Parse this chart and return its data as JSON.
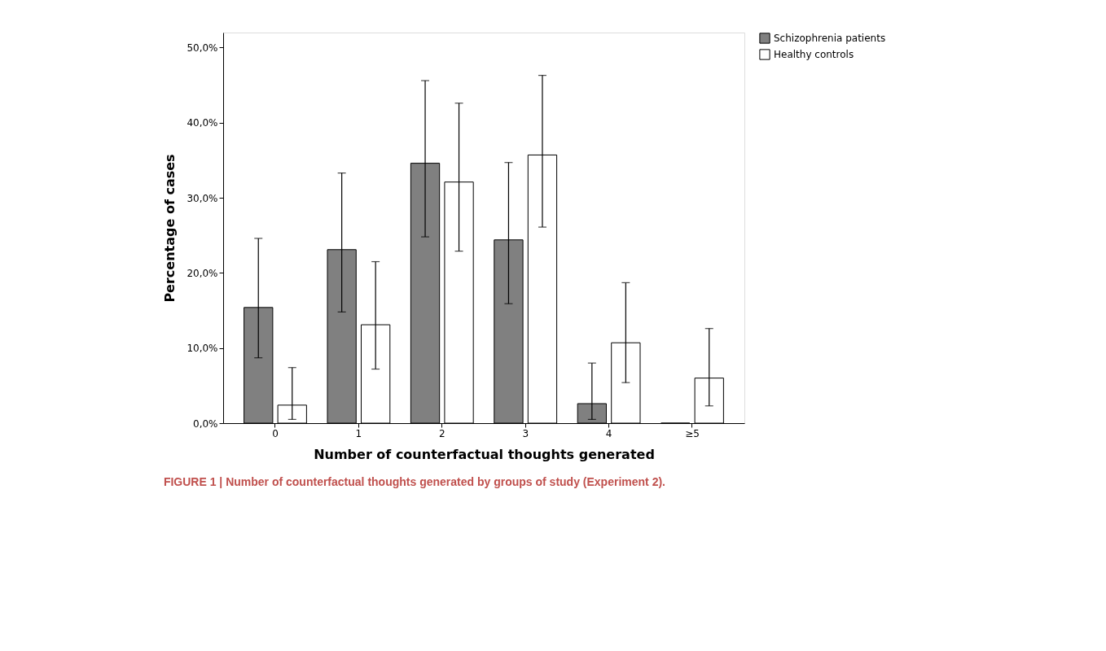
{
  "chart_data": {
    "type": "bar",
    "categories": [
      "0",
      "1",
      "2",
      "3",
      "4",
      "≥5"
    ],
    "xlabel": "Number of counterfactual thoughts generated",
    "ylabel": "Percentage of cases",
    "series": [
      {
        "name": "Schizophrenia patients",
        "color": "#808080",
        "values": [
          15.4,
          23.1,
          34.6,
          24.4,
          2.6,
          0
        ],
        "errors": [
          [
            8.7,
            24.6
          ],
          [
            14.8,
            33.3
          ],
          [
            24.8,
            45.6
          ],
          [
            15.9,
            34.7
          ],
          [
            0.5,
            8.0
          ],
          null
        ]
      },
      {
        "name": "Healthy controls",
        "color": "#ffffff",
        "values": [
          2.4,
          13.1,
          32.1,
          35.7,
          10.7,
          6.0
        ],
        "errors": [
          [
            0.5,
            7.4
          ],
          [
            7.2,
            21.5
          ],
          [
            22.9,
            42.6
          ],
          [
            26.1,
            46.3
          ],
          [
            5.4,
            18.7
          ],
          [
            2.3,
            12.6
          ]
        ]
      }
    ],
    "ylim": [
      0,
      52
    ],
    "yticks": [
      {
        "value": 0,
        "label": "0,0%"
      },
      {
        "value": 10,
        "label": "10,0%"
      },
      {
        "value": 20,
        "label": "20,0%"
      },
      {
        "value": 30,
        "label": "30,0%"
      },
      {
        "value": 40,
        "label": "40,0%"
      },
      {
        "value": 50,
        "label": "50,0%"
      }
    ],
    "grid": false,
    "legend": "top right",
    "annotations": [
      "FIGURE 1 | Number of counterfactual thoughts generated by groups of study (Experiment 2)."
    ]
  }
}
